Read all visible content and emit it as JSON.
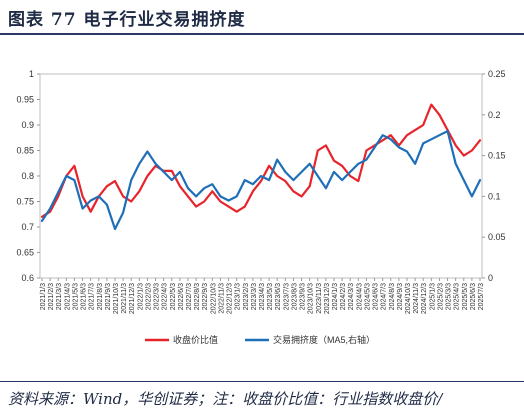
{
  "header": {
    "title": "图表  77    电子行业交易拥挤度"
  },
  "footer": {
    "source": "资料来源：Wind，华创证券；注：收盘价比值：行业指数收盘价/"
  },
  "colors": {
    "red": "#e8242b",
    "blue": "#1f6fb8",
    "rule": "#2b3a67",
    "axis": "#999999"
  },
  "chart_data": {
    "type": "line",
    "title": "",
    "xlabel": "",
    "ylabel": "",
    "ylim": [
      0.6,
      1.0
    ],
    "y_ticks": [
      "1",
      "0.95",
      "0.9",
      "0.85",
      "0.8",
      "0.75",
      "0.7",
      "0.65",
      "0.6"
    ],
    "y2lim": [
      0,
      0.25
    ],
    "y2_ticks": [
      "0.25",
      "0.2",
      "0.15",
      "0.1",
      "0.05",
      "0"
    ],
    "x_ticks": [
      "2021/1/3",
      "2021/2/3",
      "2021/3/3",
      "2021/4/3",
      "2021/5/3",
      "2021/6/3",
      "2021/7/3",
      "2021/8/3",
      "2021/9/3",
      "2021/10/3",
      "2021/11/3",
      "2021/12/3",
      "2022/1/3",
      "2022/2/3",
      "2022/3/3",
      "2022/4/3",
      "2022/5/3",
      "2022/6/3",
      "2022/7/3",
      "2022/8/3",
      "2022/9/3",
      "2022/10/3",
      "2022/11/3",
      "2022/12/3",
      "2023/1/3",
      "2023/2/3",
      "2023/3/3",
      "2023/4/3",
      "2023/5/3",
      "2023/6/3",
      "2023/7/3",
      "2023/8/3",
      "2023/9/3",
      "2023/10/3",
      "2023/11/3",
      "2023/12/3",
      "2024/1/3",
      "2024/2/3",
      "2024/3/3",
      "2024/4/3",
      "2024/5/3",
      "2024/6/3",
      "2024/7/3",
      "2024/8/3",
      "2024/9/3",
      "2024/10/3",
      "2024/11/3",
      "2024/12/3",
      "2025/1/3",
      "2025/2/3",
      "2025/3/3",
      "2025/4/3",
      "2025/5/3",
      "2025/6/3",
      "2025/7/3"
    ],
    "legend_position": "bottom",
    "series": [
      {
        "name": "收盘价比值",
        "axis": "left",
        "color": "#e8242b",
        "x": [
          "2021/1/3",
          "2021/2/3",
          "2021/3/3",
          "2021/4/3",
          "2021/5/3",
          "2021/6/3",
          "2021/7/3",
          "2021/8/3",
          "2021/9/3",
          "2021/10/3",
          "2021/11/3",
          "2021/12/3",
          "2022/1/3",
          "2022/2/3",
          "2022/3/3",
          "2022/4/3",
          "2022/5/3",
          "2022/6/3",
          "2022/7/3",
          "2022/8/3",
          "2022/9/3",
          "2022/10/3",
          "2022/11/3",
          "2022/12/3",
          "2023/1/3",
          "2023/2/3",
          "2023/3/3",
          "2023/4/3",
          "2023/5/3",
          "2023/6/3",
          "2023/7/3",
          "2023/8/3",
          "2023/9/3",
          "2023/10/3",
          "2023/11/3",
          "2023/12/3",
          "2024/1/3",
          "2024/2/3",
          "2024/3/3",
          "2024/4/3",
          "2024/5/3",
          "2024/6/3",
          "2024/7/3",
          "2024/8/3",
          "2024/9/3",
          "2024/10/3",
          "2024/11/3",
          "2024/12/3",
          "2025/1/3",
          "2025/2/3",
          "2025/3/3",
          "2025/4/3",
          "2025/5/3",
          "2025/6/3",
          "2025/7/3"
        ],
        "values": [
          0.72,
          0.73,
          0.76,
          0.8,
          0.82,
          0.76,
          0.73,
          0.76,
          0.78,
          0.79,
          0.76,
          0.75,
          0.77,
          0.8,
          0.82,
          0.81,
          0.81,
          0.78,
          0.76,
          0.74,
          0.75,
          0.77,
          0.75,
          0.74,
          0.73,
          0.74,
          0.77,
          0.79,
          0.82,
          0.8,
          0.79,
          0.77,
          0.76,
          0.78,
          0.85,
          0.86,
          0.83,
          0.82,
          0.8,
          0.79,
          0.85,
          0.86,
          0.87,
          0.88,
          0.86,
          0.88,
          0.89,
          0.9,
          0.94,
          0.92,
          0.89,
          0.86,
          0.84,
          0.85,
          0.87
        ]
      },
      {
        "name": "交易拥挤度（MA5,右轴）",
        "axis": "right",
        "color": "#1f6fb8",
        "x": [
          "2021/1/3",
          "2021/2/3",
          "2021/3/3",
          "2021/4/3",
          "2021/5/3",
          "2021/6/3",
          "2021/7/3",
          "2021/8/3",
          "2021/9/3",
          "2021/10/3",
          "2021/11/3",
          "2021/12/3",
          "2022/1/3",
          "2022/2/3",
          "2022/3/3",
          "2022/4/3",
          "2022/5/3",
          "2022/6/3",
          "2022/7/3",
          "2022/8/3",
          "2022/9/3",
          "2022/10/3",
          "2022/11/3",
          "2022/12/3",
          "2023/1/3",
          "2023/2/3",
          "2023/3/3",
          "2023/4/3",
          "2023/5/3",
          "2023/6/3",
          "2023/7/3",
          "2023/8/3",
          "2023/9/3",
          "2023/10/3",
          "2023/11/3",
          "2023/12/3",
          "2024/1/3",
          "2024/2/3",
          "2024/3/3",
          "2024/4/3",
          "2024/5/3",
          "2024/6/3",
          "2024/7/3",
          "2024/8/3",
          "2024/9/3",
          "2024/10/3",
          "2024/11/3",
          "2024/12/3",
          "2025/1/3",
          "2025/2/3",
          "2025/3/3",
          "2025/4/3",
          "2025/5/3",
          "2025/6/3",
          "2025/7/3"
        ],
        "values": [
          0.07,
          0.085,
          0.105,
          0.125,
          0.12,
          0.085,
          0.095,
          0.1,
          0.09,
          0.06,
          0.08,
          0.12,
          0.14,
          0.155,
          0.14,
          0.13,
          0.12,
          0.13,
          0.11,
          0.1,
          0.11,
          0.115,
          0.1,
          0.095,
          0.1,
          0.12,
          0.115,
          0.125,
          0.12,
          0.145,
          0.13,
          0.12,
          0.13,
          0.14,
          0.125,
          0.11,
          0.13,
          0.12,
          0.13,
          0.14,
          0.145,
          0.16,
          0.175,
          0.17,
          0.16,
          0.155,
          0.14,
          0.165,
          0.17,
          0.175,
          0.18,
          0.14,
          0.12,
          0.1,
          0.12
        ]
      }
    ]
  }
}
